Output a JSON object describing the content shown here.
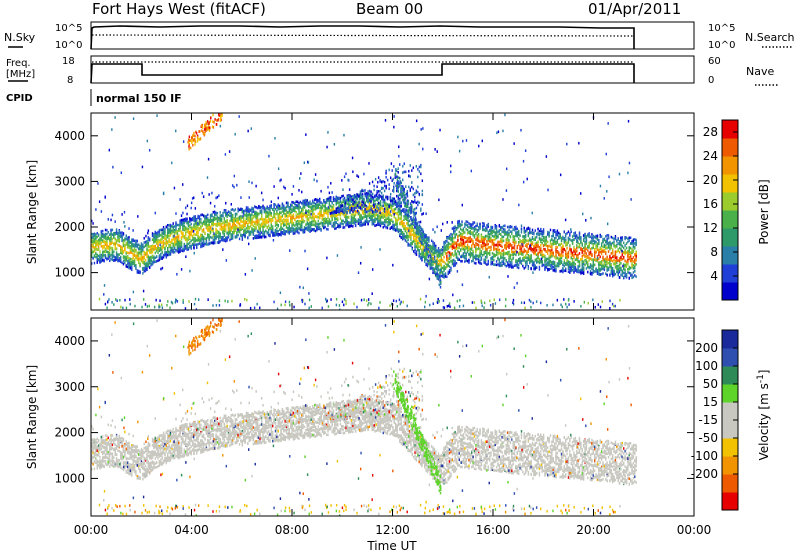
{
  "header": {
    "station": "Fort Hays West (fitACF)",
    "beam": "Beam 00",
    "date": "01/Apr/2011"
  },
  "top_panel": {
    "left_label": "N.Sky",
    "right_label": "N.Search",
    "left_ticks": [
      "10^5",
      "10^0"
    ],
    "right_ticks": [
      "10^5",
      "10^0"
    ]
  },
  "freq_panel": {
    "left_label_line1": "Freq.",
    "left_label_line2": "[MHz]",
    "right_label": "Nave",
    "left_ticks": [
      "18",
      "8"
    ],
    "right_ticks": [
      "60",
      "0"
    ]
  },
  "cpid": {
    "label": "CPID",
    "mode": "normal 150 IF"
  },
  "colors": {
    "power_scale": [
      "#0000cc",
      "#1f3fd6",
      "#2a7fa8",
      "#2e9a6a",
      "#49b04a",
      "#9bcb2d",
      "#f2c200",
      "#f29400",
      "#ee5a00",
      "#e60000"
    ],
    "velocity_scale": [
      "#e60000",
      "#ee5a00",
      "#f29400",
      "#f2c200",
      "#c8c8c0",
      "#c8c8c0",
      "#5ed42a",
      "#2e8b57",
      "#2f4fb0",
      "#1a2a9a"
    ],
    "ground_scatter": "#c8c8c0"
  },
  "chart_data": [
    {
      "type": "heatmap",
      "panel": "power",
      "ylabel": "Slant Range [km]",
      "ylim": [
        180,
        4500
      ],
      "yticks": [
        "4000",
        "3000",
        "2000",
        "1000"
      ],
      "colorbar": {
        "label": "Power [dB]",
        "ticks": [
          "28",
          "24",
          "20",
          "16",
          "12",
          "8",
          "4"
        ],
        "range": [
          0,
          30
        ]
      },
      "xlim_hours": [
        0,
        24
      ],
      "data_extent_hours": [
        0.0,
        21.7
      ],
      "main_band_center_km": [
        [
          0.0,
          1550
        ],
        [
          1.0,
          1620
        ],
        [
          1.6,
          1400
        ],
        [
          2.0,
          1300
        ],
        [
          2.6,
          1600
        ],
        [
          3.5,
          1800
        ],
        [
          5.0,
          2000
        ],
        [
          6.5,
          2100
        ],
        [
          8.0,
          2200
        ],
        [
          9.5,
          2300
        ],
        [
          11.0,
          2400
        ],
        [
          12.0,
          2300
        ],
        [
          13.0,
          1700
        ],
        [
          13.8,
          1200
        ],
        [
          14.0,
          1250
        ],
        [
          14.6,
          1700
        ],
        [
          16.0,
          1600
        ],
        [
          18.0,
          1500
        ],
        [
          20.0,
          1400
        ],
        [
          21.7,
          1300
        ]
      ],
      "feature_dense_patch": {
        "hours": [
          3.8,
          5.2
        ],
        "range_km": [
          3800,
          4500
        ],
        "power_db": [
          20,
          28
        ]
      }
    },
    {
      "type": "heatmap",
      "panel": "velocity",
      "ylabel": "Slant Range [km]",
      "ylim": [
        180,
        4500
      ],
      "yticks": [
        "4000",
        "3000",
        "2000",
        "1000"
      ],
      "xlabel": "Time UT",
      "xticks": [
        "00:00",
        "04:00",
        "08:00",
        "12:00",
        "16:00",
        "20:00",
        "00:00"
      ],
      "colorbar": {
        "label_main": "Velocity [m s",
        "label_exp": "-1",
        "label_close": "]",
        "ticks": [
          "200",
          "100",
          "50",
          "15",
          "-15",
          "-50",
          "-100",
          "-200"
        ]
      },
      "ground_scatter_band": {
        "hours": [
          0.0,
          21.7
        ],
        "range_km": [
          1100,
          2500
        ]
      },
      "green_feature": {
        "hours": [
          12.0,
          13.9
        ],
        "range_km": [
          850,
          3200
        ],
        "velocity_ms": [
          30,
          60
        ]
      },
      "orange_patch": {
        "hours": [
          3.8,
          5.2
        ],
        "range_km": [
          3900,
          4500
        ],
        "velocity_ms": [
          -100,
          -60
        ]
      }
    }
  ]
}
